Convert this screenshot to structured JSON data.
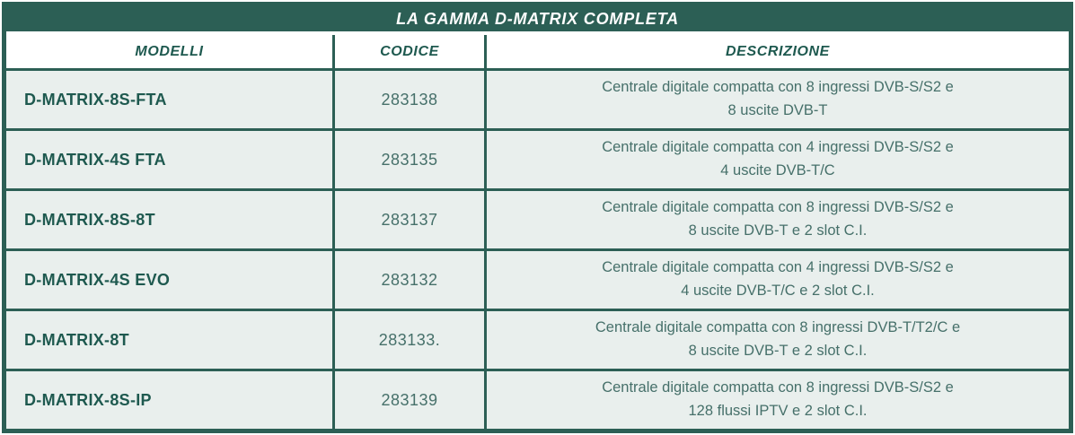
{
  "table": {
    "title": "LA GAMMA D-MATRIX COMPLETA",
    "columns": [
      "MODELLI",
      "CODICE",
      "DESCRIZIONE"
    ]
  },
  "rows": [
    {
      "model": "D-MATRIX-8S-FTA",
      "code": "283138",
      "lines": [
        "Centrale digitale compatta con 8 ingressi DVB-S/S2 e",
        "8 uscite DVB-T"
      ]
    },
    {
      "model": "D-MATRIX-4S FTA",
      "code": "283135",
      "lines": [
        "Centrale digitale compatta con 4 ingressi DVB-S/S2 e",
        "4 uscite DVB-T/C"
      ]
    },
    {
      "model": "D-MATRIX-8S-8T",
      "code": "283137",
      "lines": [
        "Centrale digitale compatta con 8 ingressi DVB-S/S2 e",
        "8 uscite DVB-T e 2 slot C.I."
      ]
    },
    {
      "model": "D-MATRIX-4S EVO",
      "code": "283132",
      "lines": [
        "Centrale digitale compatta con 4 ingressi DVB-S/S2 e",
        "4 uscite DVB-T/C e 2 slot C.I."
      ]
    },
    {
      "model": "D-MATRIX-8T",
      "code": "283133.",
      "lines": [
        "Centrale digitale compatta con 8 ingressi DVB-T/T2/C e",
        "8 uscite DVB-T e 2 slot C.I."
      ]
    },
    {
      "model": "D-MATRIX-8S-IP",
      "code": "283139",
      "lines": [
        "Centrale digitale compatta con 8 ingressi DVB-S/S2 e",
        "128 flussi IPTV e 2 slot C.I."
      ]
    }
  ],
  "colors": {
    "dark_green": "#2C5F55",
    "row_background": "#E9EFED",
    "header_text": "#1E594F",
    "body_text": "#46706A",
    "title_text": "#FFFFFF"
  }
}
